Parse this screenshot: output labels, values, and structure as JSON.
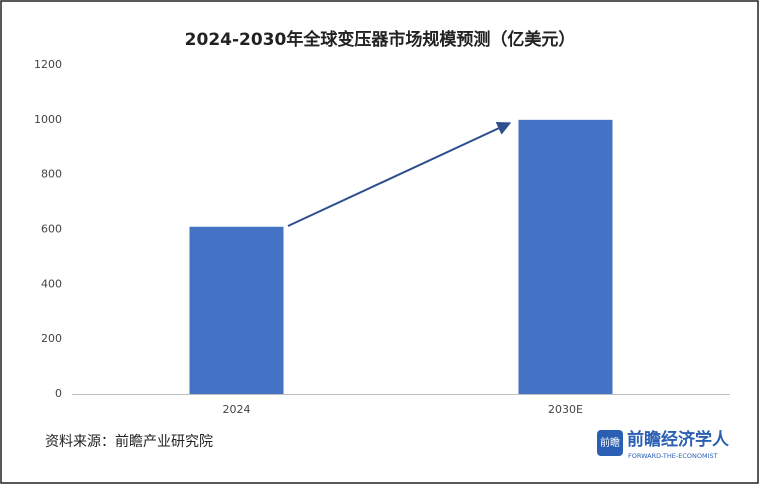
{
  "chart_data": {
    "type": "bar",
    "title": "2024-2030年全球变压器市场规模预测（亿美元）",
    "categories": [
      "2024",
      "2030E"
    ],
    "values": [
      610,
      1000
    ],
    "color": "#4472c4",
    "ylim": [
      0,
      1200
    ],
    "yticks": [
      0,
      200,
      400,
      600,
      800,
      1000,
      1200
    ],
    "grid": false,
    "source": "资料来源：前瞻产业研究院",
    "logo_icon": "前瞻",
    "logo_name": "前瞻经济学人",
    "logo_tagline": "FORWARD-THE-ECONOMIST"
  }
}
